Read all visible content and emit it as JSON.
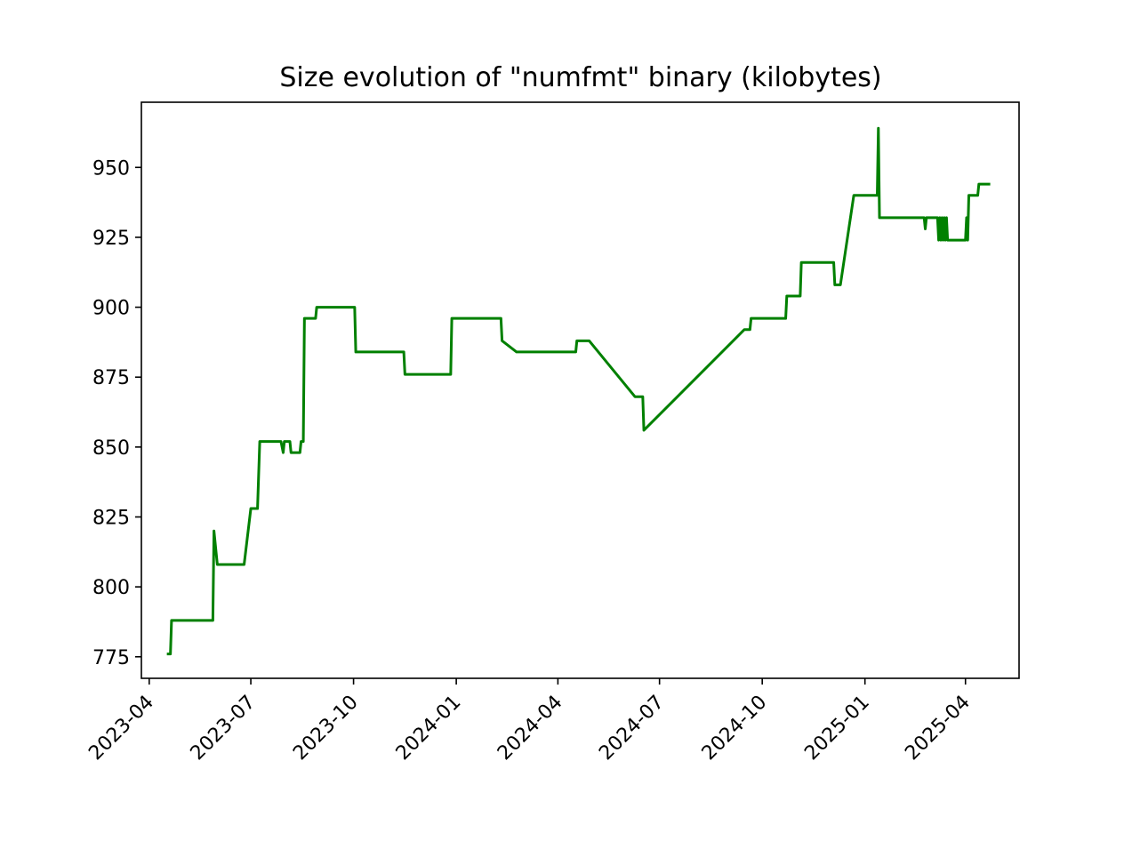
{
  "chart_data": {
    "type": "line",
    "title": "Size evolution of \"numfmt\" binary (kilobytes)",
    "xlabel": "",
    "ylabel": "",
    "x_axis_type": "date",
    "xlim": [
      "2023-03-25",
      "2025-05-19"
    ],
    "ylim": [
      767.3,
      973.3
    ],
    "grid": false,
    "legend": "none",
    "x_tick_labels": [
      "2023-04",
      "2023-07",
      "2023-10",
      "2024-01",
      "2024-04",
      "2024-07",
      "2024-10",
      "2025-01",
      "2025-04"
    ],
    "y_ticks": [
      775,
      800,
      825,
      850,
      875,
      900,
      925,
      950
    ],
    "y_tick_labels": [
      "775",
      "800",
      "825",
      "850",
      "875",
      "900",
      "925",
      "950"
    ],
    "series": [
      {
        "color": "#008000",
        "points": [
          [
            "2023-04-18",
            776
          ],
          [
            "2023-04-20",
            776
          ],
          [
            "2023-04-21",
            788
          ],
          [
            "2023-05-28",
            788
          ],
          [
            "2023-05-29",
            820
          ],
          [
            "2023-05-30",
            816
          ],
          [
            "2023-05-31",
            812
          ],
          [
            "2023-06-01",
            808
          ],
          [
            "2023-06-25",
            808
          ],
          [
            "2023-07-01",
            828
          ],
          [
            "2023-07-07",
            828
          ],
          [
            "2023-07-09",
            852
          ],
          [
            "2023-07-28",
            852
          ],
          [
            "2023-07-30",
            848
          ],
          [
            "2023-07-31",
            852
          ],
          [
            "2023-08-05",
            852
          ],
          [
            "2023-08-06",
            848
          ],
          [
            "2023-08-14",
            848
          ],
          [
            "2023-08-15",
            852
          ],
          [
            "2023-08-17",
            852
          ],
          [
            "2023-08-18",
            896
          ],
          [
            "2023-08-28",
            896
          ],
          [
            "2023-08-29",
            900
          ],
          [
            "2023-10-02",
            900
          ],
          [
            "2023-10-03",
            884
          ],
          [
            "2023-11-15",
            884
          ],
          [
            "2023-11-16",
            876
          ],
          [
            "2023-12-27",
            876
          ],
          [
            "2023-12-28",
            896
          ],
          [
            "2024-02-10",
            896
          ],
          [
            "2024-02-11",
            888
          ],
          [
            "2024-02-24",
            884
          ],
          [
            "2024-04-17",
            884
          ],
          [
            "2024-04-18",
            888
          ],
          [
            "2024-04-29",
            888
          ],
          [
            "2024-06-09",
            868
          ],
          [
            "2024-06-16",
            868
          ],
          [
            "2024-06-17",
            856
          ],
          [
            "2024-09-15",
            892
          ],
          [
            "2024-09-20",
            892
          ],
          [
            "2024-09-21",
            896
          ],
          [
            "2024-10-22",
            896
          ],
          [
            "2024-10-23",
            904
          ],
          [
            "2024-11-04",
            904
          ],
          [
            "2024-11-05",
            916
          ],
          [
            "2024-12-04",
            916
          ],
          [
            "2024-12-05",
            908
          ],
          [
            "2024-12-10",
            908
          ],
          [
            "2024-12-22",
            940
          ],
          [
            "2025-01-12",
            940
          ],
          [
            "2025-01-13",
            964
          ],
          [
            "2025-01-14",
            932
          ],
          [
            "2025-02-23",
            932
          ],
          [
            "2025-02-24",
            928
          ],
          [
            "2025-02-25",
            932
          ],
          [
            "2025-03-07",
            932
          ],
          [
            "2025-03-08",
            924
          ],
          [
            "2025-03-09",
            932
          ],
          [
            "2025-03-10",
            924
          ],
          [
            "2025-03-11",
            932
          ],
          [
            "2025-03-12",
            924
          ],
          [
            "2025-03-13",
            932
          ],
          [
            "2025-03-14",
            924
          ],
          [
            "2025-03-15",
            932
          ],
          [
            "2025-03-16",
            924
          ],
          [
            "2025-04-01",
            924
          ],
          [
            "2025-04-02",
            932
          ],
          [
            "2025-04-03",
            924
          ],
          [
            "2025-04-04",
            940
          ],
          [
            "2025-04-12",
            940
          ],
          [
            "2025-04-13",
            944
          ],
          [
            "2025-04-22",
            944
          ]
        ]
      }
    ]
  }
}
